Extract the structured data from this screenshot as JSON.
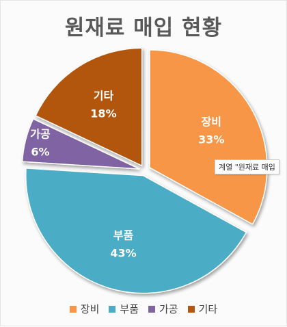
{
  "title": "원재료 매입 현황",
  "tooltip": "계열 \"원재료 매입",
  "chart_data": {
    "type": "pie",
    "title": "원재료 매입 현황",
    "slices": [
      {
        "label": "장비",
        "value": 33,
        "pct_label": "33%",
        "color": "#f79646"
      },
      {
        "label": "부품",
        "value": 43,
        "pct_label": "43%",
        "color": "#4bacc6"
      },
      {
        "label": "가공",
        "value": 6,
        "pct_label": "6%",
        "color": "#8064a2"
      },
      {
        "label": "기타",
        "value": 18,
        "pct_label": "18%",
        "color": "#b3560f"
      }
    ],
    "exploded": true,
    "legend": "bottom"
  }
}
